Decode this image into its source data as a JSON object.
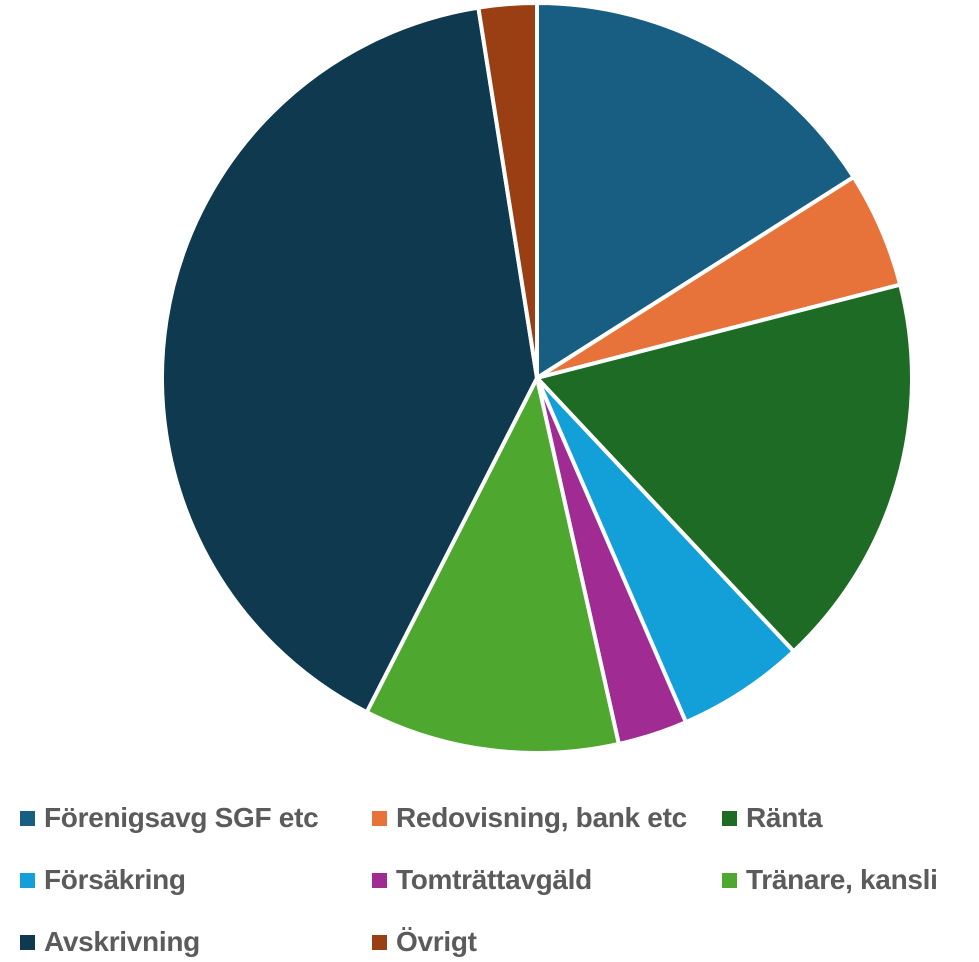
{
  "chart_data": {
    "type": "pie",
    "title": "",
    "start_angle_deg": 0,
    "direction": "clockwise",
    "slices": [
      {
        "label": "Förenigsavg SGF etc",
        "value": 16.0,
        "color": "#185d82"
      },
      {
        "label": "Redovisning, bank etc",
        "value": 5.0,
        "color": "#e8733a"
      },
      {
        "label": "Ränta",
        "value": 17.0,
        "color": "#1d6b24"
      },
      {
        "label": "Försäkring",
        "value": 5.5,
        "color": "#13a0d9"
      },
      {
        "label": "Tomträttavgäld",
        "value": 3.0,
        "color": "#a02b93"
      },
      {
        "label": "Tränare, kansli",
        "value": 11.0,
        "color": "#4ea72e"
      },
      {
        "label": "Avskrivning",
        "value": 40.0,
        "color": "#0e394f"
      },
      {
        "label": "Övrigt",
        "value": 2.5,
        "color": "#9a3f13"
      }
    ],
    "legend": {
      "placement": "bottom",
      "order": [
        0,
        1,
        2,
        3,
        4,
        5,
        6,
        7
      ]
    }
  }
}
